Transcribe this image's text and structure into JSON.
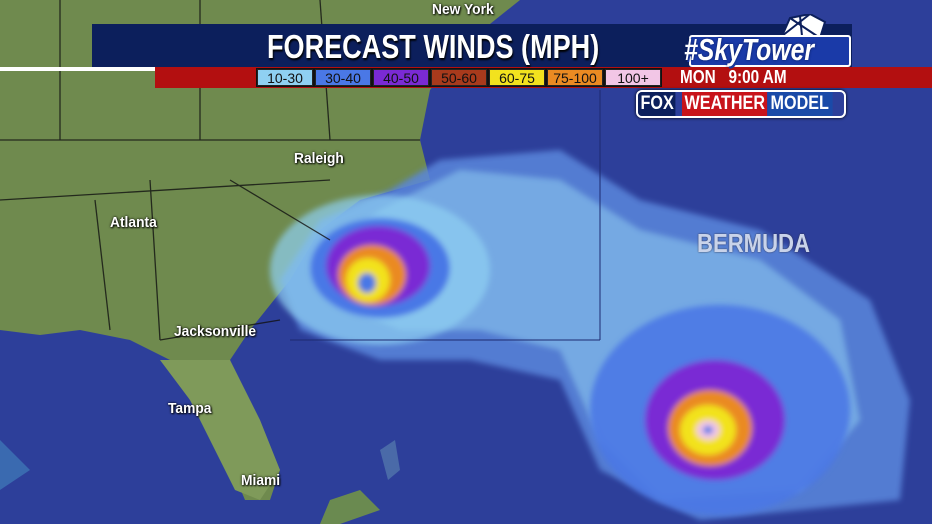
{
  "title": "FORECAST WINDS (MPH)",
  "branding": {
    "hashtag": "#SkyTower",
    "fox": "FOX",
    "weather": "WEATHER",
    "model": "MODEL"
  },
  "valid_time": {
    "day": "MON",
    "time": "9:00 AM"
  },
  "legend": [
    {
      "label": "10-30",
      "color": "#8fd0f2"
    },
    {
      "label": "30-40",
      "color": "#4a78e6"
    },
    {
      "label": "40-50",
      "color": "#7a2ad4"
    },
    {
      "label": "50-60",
      "color": "#a83a1c"
    },
    {
      "label": "60-75",
      "color": "#f2e21e"
    },
    {
      "label": "75-100",
      "color": "#ea8a22"
    },
    {
      "label": "100+",
      "color": "#f2c6e6"
    }
  ],
  "cities": [
    "New York",
    "Raleigh",
    "Atlanta",
    "Jacksonville",
    "Tampa",
    "Miami"
  ],
  "regions": [
    "BERMUDA"
  ],
  "colors": {
    "header": "#0c1f5c",
    "red_bar": "#b30f10",
    "ocean": "#2d3f9a",
    "land": "#6f8a4e"
  }
}
